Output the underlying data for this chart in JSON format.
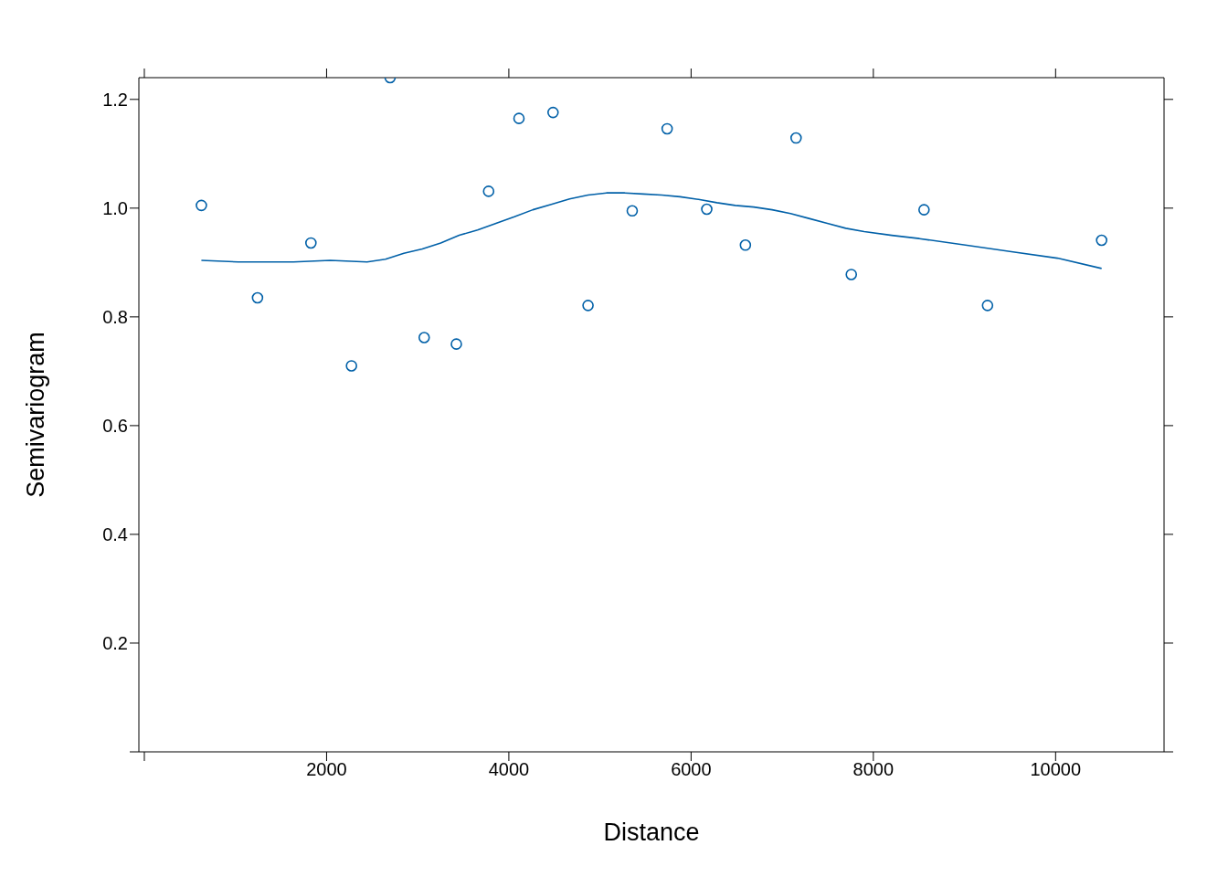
{
  "chart_data": {
    "type": "scatter",
    "xlabel": "Distance",
    "ylabel": "Semivariogram",
    "xlim": [
      -60,
      11190
    ],
    "xticks": [
      {
        "value": 0,
        "label": null
      },
      2000,
      4000,
      6000,
      8000,
      10000
    ],
    "ylim": [
      0,
      1.24
    ],
    "yticks": [
      {
        "value": 0,
        "label": null
      },
      0.2,
      0.4,
      0.6,
      0.8,
      {
        "value": 1,
        "label": "1.0"
      },
      1.2
    ],
    "grid": false,
    "legend": false,
    "marker": "circle",
    "series": [
      {
        "color": "#0060a8",
        "x": [
          626,
          1242,
          1828,
          2273,
          2697,
          3071,
          3424,
          3778,
          4111,
          4485,
          4869,
          5354,
          5737,
          6172,
          6596,
          7152,
          7758,
          8556,
          9253,
          10505
        ],
        "values": [
          1.005,
          0.835,
          0.936,
          0.71,
          1.24,
          0.762,
          0.75,
          1.031,
          1.165,
          1.176,
          0.821,
          0.995,
          1.146,
          0.998,
          0.932,
          1.129,
          0.878,
          0.997,
          0.821,
          0.941
        ]
      },
      {
        "type": "line",
        "color": "#0060a8",
        "line_style": "solid",
        "marker": "none",
        "x": [
          626,
          1030,
          1636,
          2040,
          2444,
          2646,
          2848,
          3051,
          3253,
          3455,
          3657,
          3859,
          4061,
          4263,
          4465,
          4667,
          4869,
          5071,
          5273,
          5475,
          5677,
          5879,
          6081,
          6283,
          6485,
          6687,
          6889,
          7091,
          7293,
          7495,
          7697,
          7899,
          8202,
          8505,
          9010,
          9515,
          10020,
          10505
        ],
        "values": [
          0.904,
          0.901,
          0.901,
          0.904,
          0.901,
          0.906,
          0.917,
          0.925,
          0.936,
          0.95,
          0.96,
          0.972,
          0.984,
          0.997,
          1.007,
          1.017,
          1.024,
          1.028,
          1.028,
          1.026,
          1.024,
          1.021,
          1.016,
          1.01,
          1.005,
          1.002,
          0.997,
          0.99,
          0.981,
          0.972,
          0.963,
          0.957,
          0.95,
          0.944,
          0.932,
          0.92,
          0.908,
          0.889
        ]
      }
    ]
  }
}
